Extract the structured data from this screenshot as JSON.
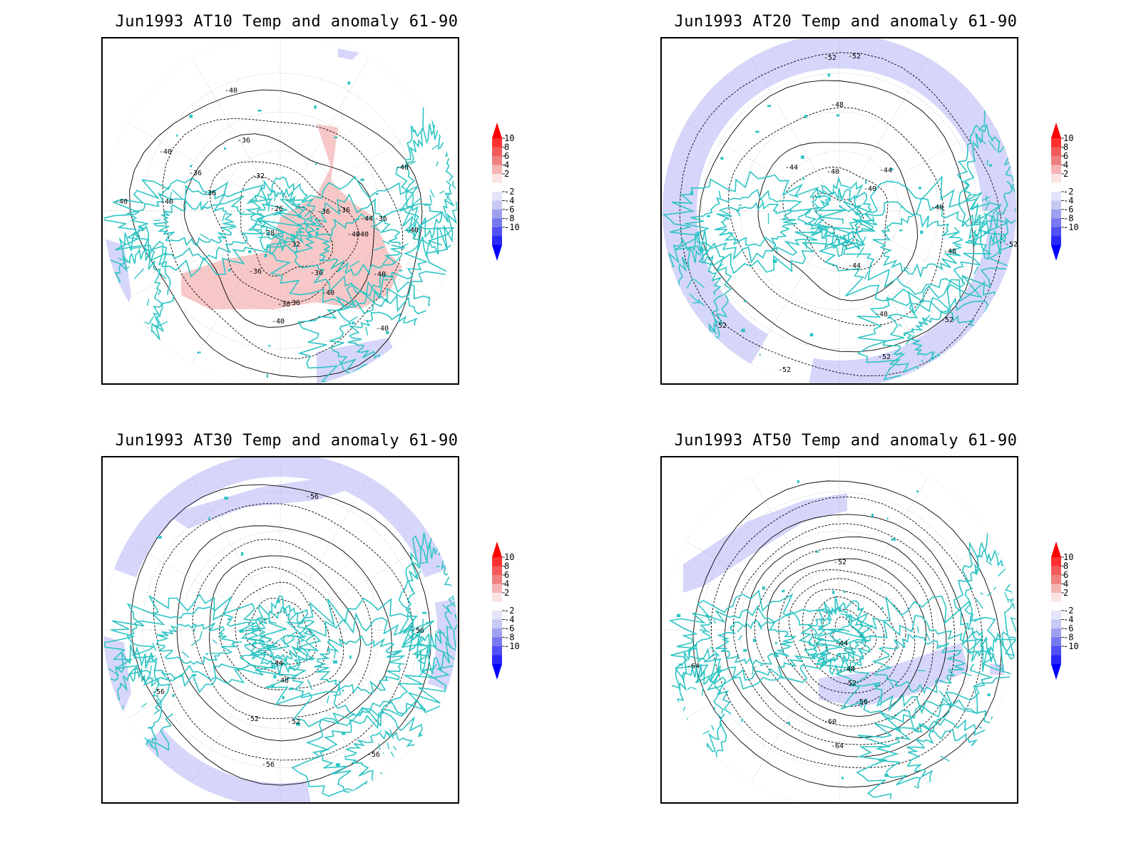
{
  "panels": [
    {
      "title": "Jun1993 AT10 Temp and anomaly 61-90",
      "contour_labels": [
        "-40",
        "-36",
        "-40",
        "-36",
        "-32",
        "-40",
        "-36",
        "-40",
        "-40",
        "-36",
        "-28",
        "-26",
        "-36",
        "-40",
        "-36",
        "-32",
        "-36",
        "-36",
        "-40",
        "-36",
        "-40",
        "-40",
        "-44",
        "-40",
        "-40",
        "-40",
        "-36"
      ]
    },
    {
      "title": "Jun1993 AT20 Temp and anomaly 61-90",
      "contour_labels": [
        "-52",
        "-52",
        "-48",
        "-44",
        "-40",
        "-44",
        "-40",
        "-48",
        "-48",
        "-52",
        "-44",
        "-48",
        "-52",
        "-52",
        "-52",
        "-52"
      ]
    },
    {
      "title": "Jun1993 AT30 Temp and anomaly 61-90",
      "contour_labels": [
        "-56",
        "-56",
        "-44",
        "-48",
        "-56",
        "-52",
        "-52",
        "-56",
        "-56"
      ]
    },
    {
      "title": "Jun1993 AT50 Temp and anomaly 61-90",
      "contour_labels": [
        "-52",
        "-44",
        "-48",
        "-52",
        "-56",
        "-60",
        "-64",
        "-64"
      ]
    }
  ],
  "colorbar": {
    "ticks": [
      "10",
      "8",
      "6",
      "4",
      "2",
      "-2",
      "-4",
      "-6",
      "-8",
      "-10"
    ],
    "colors": [
      "#ff0000",
      "#ff3030",
      "#f55a5a",
      "#f08080",
      "#f5b4b4",
      "#fbe3e3",
      "#ffffff",
      "#e4e4fb",
      "#c8c8f5",
      "#a0a0f0",
      "#7878f0",
      "#5050f5",
      "#2828fa",
      "#0000ff"
    ]
  },
  "colors": {
    "warm_anomaly": "#f8c8c8",
    "cold_anomaly": "#d6d6fa",
    "coastline": "#2ec4c4",
    "contour": "#000000",
    "grid": "#9a9a9a"
  }
}
